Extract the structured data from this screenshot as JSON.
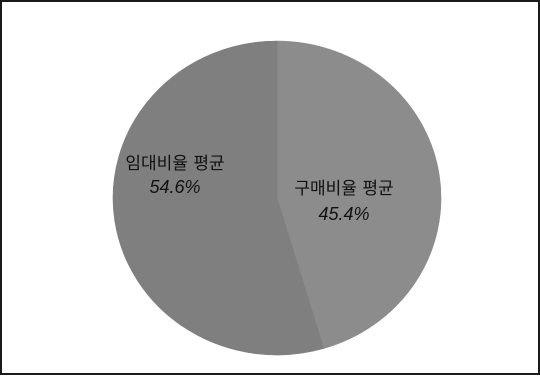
{
  "chart_data": {
    "type": "pie",
    "title": "",
    "slices": [
      {
        "label": "구매비율 평균",
        "value": 45.4,
        "value_label": "45.4%",
        "color": "#8c8c8c"
      },
      {
        "label": "임대비율 평균",
        "value": 54.6,
        "value_label": "54.6%",
        "color": "#7f7f7f"
      }
    ],
    "start_at": "top",
    "direction": "clockwise",
    "legend": "none"
  }
}
